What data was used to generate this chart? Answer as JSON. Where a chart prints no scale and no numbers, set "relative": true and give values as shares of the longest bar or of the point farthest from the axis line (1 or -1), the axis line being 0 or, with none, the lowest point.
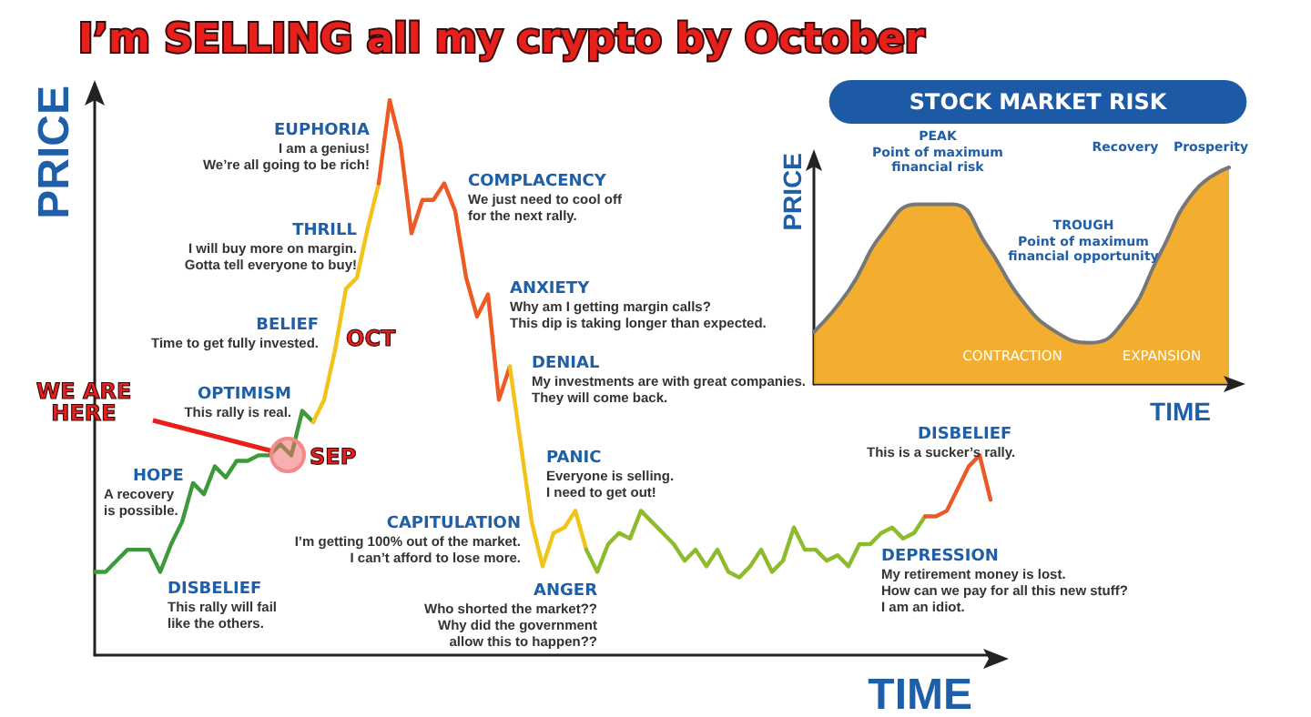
{
  "chart_data": [
    {
      "type": "line",
      "title": "I’m SELLING all my crypto by October",
      "xlabel": "TIME",
      "ylabel": "PRICE",
      "relative": true,
      "grid": false,
      "marker": "none",
      "line_style": "solid",
      "categories": [
        null,
        null,
        null,
        null,
        null,
        null,
        null,
        null,
        null,
        null,
        null,
        null,
        null,
        null,
        null,
        null,
        null,
        null,
        null,
        null,
        null,
        null,
        null,
        null,
        null,
        null,
        null,
        null,
        null,
        null,
        null,
        null,
        null,
        null,
        null,
        null,
        null,
        null,
        null,
        null,
        null,
        null,
        null,
        null,
        null,
        null,
        null,
        null,
        null,
        null,
        null,
        null,
        null,
        null,
        null,
        null,
        null,
        null,
        null,
        null,
        null,
        null,
        null,
        null,
        null,
        null,
        null,
        null,
        null,
        null,
        null,
        null,
        null,
        null,
        null,
        null,
        null,
        null,
        null,
        null,
        null,
        null,
        null
      ],
      "series": [
        {
          "color": "#3d9a3a",
          "values": [
            0.15,
            0.15,
            0.17,
            0.19,
            0.19,
            0.19,
            0.15,
            0.2,
            0.24,
            0.31,
            0.29,
            0.34,
            0.32,
            0.35,
            0.35,
            0.36,
            0.36,
            0.38,
            0.36,
            0.44,
            0.42,
            null,
            null,
            null,
            null,
            null,
            null,
            null,
            null,
            null,
            null,
            null,
            null,
            null,
            null,
            null,
            null,
            null,
            null,
            null,
            null,
            null,
            null,
            null,
            null,
            null,
            null,
            null,
            null,
            null,
            null,
            null,
            null,
            null,
            null,
            null,
            null,
            null,
            null,
            null,
            null,
            null,
            null,
            null,
            null,
            null,
            null,
            null,
            null,
            null,
            null,
            null,
            null,
            null,
            null,
            null,
            null,
            null,
            null,
            null,
            null,
            null,
            null
          ]
        },
        {
          "color": "#f2c318",
          "values": [
            null,
            null,
            null,
            null,
            null,
            null,
            null,
            null,
            null,
            null,
            null,
            null,
            null,
            null,
            null,
            null,
            null,
            null,
            null,
            null,
            0.42,
            0.46,
            0.55,
            0.66,
            0.68,
            0.77,
            0.85,
            null,
            null,
            null,
            null,
            null,
            null,
            null,
            null,
            null,
            null,
            null,
            null,
            null,
            null,
            null,
            null,
            null,
            null,
            null,
            null,
            null,
            null,
            null,
            null,
            null,
            null,
            null,
            null,
            null,
            null,
            null,
            null,
            null,
            null,
            null,
            null,
            null,
            null,
            null,
            null,
            null,
            null,
            null,
            null,
            null,
            null,
            null,
            null,
            null,
            null,
            null,
            null,
            null,
            null,
            null,
            null
          ]
        },
        {
          "color": "#ee5a24",
          "values": [
            null,
            null,
            null,
            null,
            null,
            null,
            null,
            null,
            null,
            null,
            null,
            null,
            null,
            null,
            null,
            null,
            null,
            null,
            null,
            null,
            null,
            null,
            null,
            null,
            null,
            null,
            0.85,
            1,
            0.92,
            0.76,
            0.82,
            0.82,
            0.85,
            0.8,
            0.68,
            0.61,
            0.65,
            0.46,
            0.52,
            null,
            null,
            null,
            null,
            null,
            null,
            null,
            null,
            null,
            null,
            null,
            null,
            null,
            null,
            null,
            null,
            null,
            null,
            null,
            null,
            null,
            null,
            null,
            null,
            null,
            null,
            null,
            null,
            null,
            null,
            null,
            null,
            null,
            null,
            null,
            null,
            null,
            null,
            null,
            null,
            null,
            null,
            null,
            null
          ]
        },
        {
          "color": "#f2c318",
          "values": [
            null,
            null,
            null,
            null,
            null,
            null,
            null,
            null,
            null,
            null,
            null,
            null,
            null,
            null,
            null,
            null,
            null,
            null,
            null,
            null,
            null,
            null,
            null,
            null,
            null,
            null,
            null,
            null,
            null,
            null,
            null,
            null,
            null,
            null,
            null,
            null,
            null,
            null,
            0.52,
            0.38,
            0.24,
            0.16,
            0.22,
            0.23,
            0.26,
            0.19,
            null,
            null,
            null,
            null,
            null,
            null,
            null,
            null,
            null,
            null,
            null,
            null,
            null,
            null,
            null,
            null,
            null,
            null,
            null,
            null,
            null,
            null,
            null,
            null,
            null,
            null,
            null,
            null,
            null,
            null,
            null,
            null,
            null,
            null,
            null,
            null,
            null
          ]
        },
        {
          "color": "#8dbb2c",
          "values": [
            null,
            null,
            null,
            null,
            null,
            null,
            null,
            null,
            null,
            null,
            null,
            null,
            null,
            null,
            null,
            null,
            null,
            null,
            null,
            null,
            null,
            null,
            null,
            null,
            null,
            null,
            null,
            null,
            null,
            null,
            null,
            null,
            null,
            null,
            null,
            null,
            null,
            null,
            null,
            null,
            null,
            null,
            null,
            null,
            null,
            0.19,
            0.15,
            0.2,
            0.22,
            0.21,
            0.26,
            0.24,
            0.22,
            0.2,
            0.17,
            0.19,
            0.16,
            0.19,
            0.15,
            0.14,
            0.16,
            0.19,
            0.15,
            0.17,
            0.23,
            0.19,
            0.19,
            0.17,
            0.18,
            0.16,
            0.2,
            0.2,
            0.22,
            0.23,
            0.21,
            0.22,
            0.25,
            null,
            null,
            null,
            null,
            null,
            null
          ]
        },
        {
          "color": "#ea5a28",
          "values": [
            null,
            null,
            null,
            null,
            null,
            null,
            null,
            null,
            null,
            null,
            null,
            null,
            null,
            null,
            null,
            null,
            null,
            null,
            null,
            null,
            null,
            null,
            null,
            null,
            null,
            null,
            null,
            null,
            null,
            null,
            null,
            null,
            null,
            null,
            null,
            null,
            null,
            null,
            null,
            null,
            null,
            null,
            null,
            null,
            null,
            null,
            null,
            null,
            null,
            null,
            null,
            null,
            null,
            null,
            null,
            null,
            null,
            null,
            null,
            null,
            null,
            null,
            null,
            null,
            null,
            null,
            null,
            null,
            null,
            null,
            null,
            null,
            null,
            null,
            null,
            null,
            0.25,
            0.25,
            0.26,
            0.3,
            0.34,
            0.36,
            0.28
          ]
        }
      ],
      "annotations": [
        "EUPHORIA",
        "I am a genius!\nWe’re all going to be rich!",
        "THRILL",
        "I will buy more on margin.\nGotta tell everyone to buy!",
        "BELIEF",
        "Time to get fully invested.",
        "OPTIMISM",
        "This rally is real.",
        "HOPE",
        "A recovery\nis possible.",
        "DISBELIEF",
        "This rally will fail\nlike the others.",
        "CAPITULATION",
        "I’m getting 100% out of the market.\nI can’t afford to lose more.",
        "ANGER",
        "Who shorted the market??\nWhy did the government\nallow this to happen??",
        "PANIC",
        "Everyone is selling.\nI need to get out!",
        "DENIAL",
        "My investments are with great companies.\nThey will come back.",
        "ANXIETY",
        "Why am I getting margin calls?\nThis dip is taking longer than expected.",
        "COMPLACENCY",
        "We just need to cool off\nfor the next rally.",
        "DISBELIEF",
        "This is a sucker’s rally.",
        "DEPRESSION",
        "My retirement money is lost.\nHow can we pay for all this new stuff?\nI am an idiot.",
        "WE ARE\nHERE",
        "SEP",
        "OCT"
      ]
    },
    {
      "type": "area",
      "title": "STOCK MARKET RISK",
      "xlabel": "TIME",
      "ylabel": "PRICE",
      "relative": true,
      "grid": false,
      "marker": "none",
      "categories": [
        null,
        null,
        null,
        null,
        null,
        null,
        null,
        null,
        null,
        null,
        null,
        null,
        null
      ],
      "series": [
        {
          "color": "#f2a51a",
          "values": [
            0.24,
            0.43,
            0.7,
            0.83,
            0.83,
            0.64,
            0.39,
            0.24,
            0.19,
            0.3,
            0.6,
            0.89,
            1
          ]
        }
      ],
      "annotations": [
        "PEAK",
        "Point of maximum\nfinancial risk",
        "TROUGH",
        "Point of maximum\nfinancial opportunity",
        "Recovery",
        "Prosperity",
        "CONTRACTION",
        "EXPANSION"
      ]
    }
  ]
}
